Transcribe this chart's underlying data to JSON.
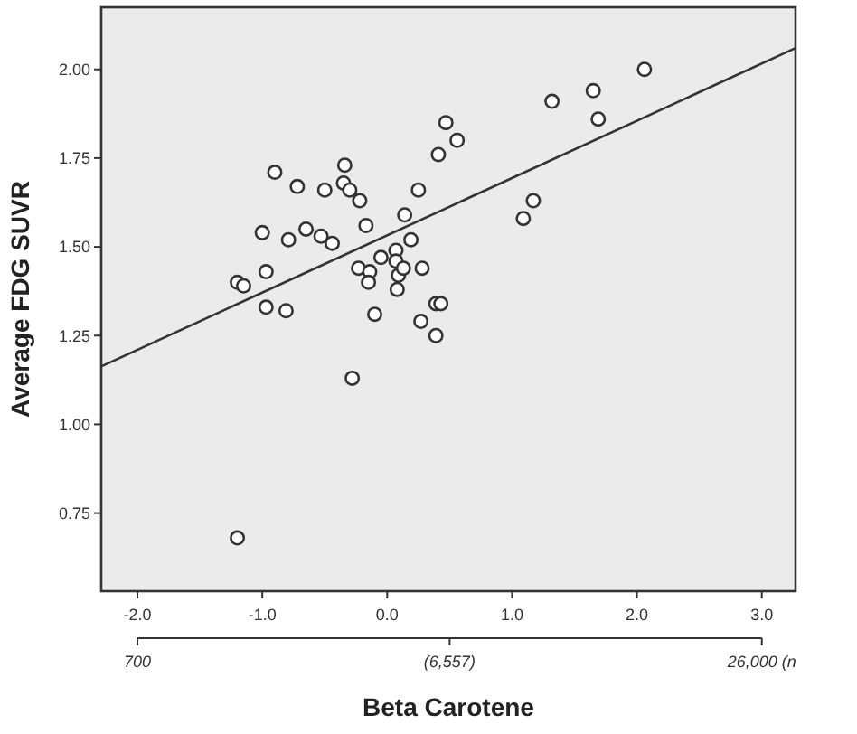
{
  "chart_data": {
    "type": "scatter",
    "xlabel": "Beta Carotene",
    "ylabel": "Average FDG SUVR",
    "xlim": [
      -2.29,
      3.27
    ],
    "ylim": [
      0.53,
      2.175
    ],
    "xticks": [
      {
        "value": -2,
        "label": "-2.0"
      },
      {
        "value": -1,
        "label": "-1.0"
      },
      {
        "value": 0,
        "label": "0.0"
      },
      {
        "value": 1,
        "label": "1.0"
      },
      {
        "value": 2,
        "label": "2.0"
      },
      {
        "value": 3,
        "label": "3.0"
      }
    ],
    "yticks": [
      {
        "value": 0.75,
        "label": "0.75"
      },
      {
        "value": 1,
        "label": "1.00"
      },
      {
        "value": 1.25,
        "label": "1.25"
      },
      {
        "value": 1.5,
        "label": "1.50"
      },
      {
        "value": 1.75,
        "label": "1.75"
      },
      {
        "value": 2,
        "label": "2.00"
      }
    ],
    "annotations": [
      "700",
      "(6,557)",
      "26,000 (n"
    ],
    "grid": false,
    "series": [
      {
        "color": "#333333",
        "marker": "circle",
        "x": [
          -1.2,
          -1.15,
          -0.97,
          -1.0,
          -0.97,
          -0.9,
          -0.81,
          -0.79,
          -0.72,
          -0.65,
          -0.53,
          -0.5,
          -0.44,
          -0.34,
          -0.35,
          -0.3,
          -0.22,
          -0.17,
          -0.23,
          -0.14,
          -0.15,
          -0.1,
          -0.05,
          0.07,
          0.07,
          0.09,
          0.13,
          0.08,
          0.14,
          0.19,
          0.25,
          0.28,
          0.27,
          0.39,
          0.39,
          0.43,
          0.41,
          0.47,
          0.56,
          1.09,
          1.17,
          1.32,
          1.65,
          1.69,
          2.06,
          -0.28,
          -1.2
        ],
        "values": [
          1.4,
          1.39,
          1.43,
          1.54,
          1.33,
          1.71,
          1.32,
          1.52,
          1.67,
          1.55,
          1.53,
          1.66,
          1.51,
          1.73,
          1.68,
          1.66,
          1.63,
          1.56,
          1.44,
          1.43,
          1.4,
          1.31,
          1.47,
          1.49,
          1.46,
          1.42,
          1.44,
          1.38,
          1.59,
          1.52,
          1.66,
          1.44,
          1.29,
          1.25,
          1.34,
          1.34,
          1.76,
          1.85,
          1.8,
          1.58,
          1.63,
          1.91,
          1.94,
          1.86,
          2.0,
          1.13,
          0.68
        ]
      },
      {
        "type": "line",
        "color": "#333333",
        "marker": "none",
        "line_style": "solid",
        "x": [
          -2.29,
          3.27
        ],
        "values": [
          1.163,
          2.06
        ]
      }
    ]
  }
}
